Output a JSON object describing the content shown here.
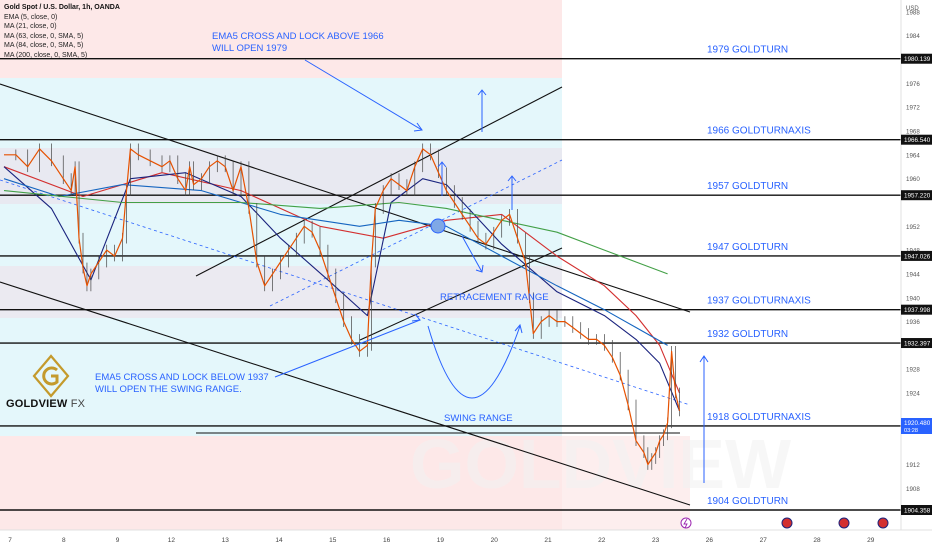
{
  "header": {
    "title": "Gold Spot / U.S. Dollar, 1h, OANDA",
    "indicators": [
      "EMA (5, close, 0)",
      "MA (21, close, 0)",
      "MA (63, close, 0, SMA, 5)",
      "MA (84, close, 0, SMA, 5)",
      "MA (200, close, 0, SMA, 5)"
    ]
  },
  "logo": {
    "brand": "GOLDVIEW",
    "brand_suffix": "FX",
    "watermark": "GOLDVIEW"
  },
  "colors": {
    "goldturn_text": "#2962ff",
    "annotation_text": "#2962ff",
    "arrow": "#2962ff",
    "price_line": "#e65100",
    "ema5": "#e65100",
    "ma21": "#d32f2f",
    "ma63": "#1a237e",
    "ma84": "#1565c0",
    "ma200": "#43a047",
    "pink_zone": "#fde4e4",
    "cyan_zone": "#e2f7fb",
    "level_line": "#111111"
  },
  "chart_data": {
    "type": "line",
    "symbol": "Gold Spot / U.S. Dollar",
    "timeframe": "1h",
    "source": "OANDA",
    "currency": "USD",
    "ylim": [
      1901,
      1990
    ],
    "x_ticks": [
      "7",
      "8",
      "9",
      "12",
      "13",
      "14",
      "15",
      "16",
      "19",
      "20",
      "21",
      "22",
      "23",
      "26",
      "27",
      "28",
      "29"
    ],
    "y_ticks": [
      1988,
      1984,
      1976,
      1972,
      1968,
      1964,
      1960,
      1952,
      1948,
      1944,
      1940,
      1936,
      1928,
      1924,
      1912,
      1908
    ],
    "price_series": {
      "name": "XAUUSD",
      "points": [
        [
          0,
          1964
        ],
        [
          3,
          1964
        ],
        [
          6,
          1962
        ],
        [
          9,
          1965
        ],
        [
          12,
          1963
        ],
        [
          15,
          1960
        ],
        [
          17,
          1958
        ],
        [
          18,
          1962
        ],
        [
          19,
          1950
        ],
        [
          20,
          1945
        ],
        [
          21,
          1942
        ],
        [
          22,
          1944
        ],
        [
          24,
          1946
        ],
        [
          26,
          1948
        ],
        [
          28,
          1947
        ],
        [
          30,
          1950
        ],
        [
          31,
          1958
        ],
        [
          32,
          1965
        ],
        [
          34,
          1964
        ],
        [
          37,
          1963
        ],
        [
          40,
          1962
        ],
        [
          42,
          1963
        ],
        [
          44,
          1960
        ],
        [
          46,
          1958
        ],
        [
          47,
          1962
        ],
        [
          48,
          1959
        ],
        [
          50,
          1960
        ],
        [
          52,
          1962
        ],
        [
          54,
          1963
        ],
        [
          56,
          1962
        ],
        [
          58,
          1958
        ],
        [
          60,
          1962
        ],
        [
          62,
          1955
        ],
        [
          64,
          1946
        ],
        [
          66,
          1942
        ],
        [
          68,
          1944
        ],
        [
          70,
          1946
        ],
        [
          72,
          1948
        ],
        [
          74,
          1950
        ],
        [
          76,
          1952
        ],
        [
          78,
          1951
        ],
        [
          80,
          1948
        ],
        [
          82,
          1944
        ],
        [
          84,
          1940
        ],
        [
          86,
          1936
        ],
        [
          88,
          1933
        ],
        [
          90,
          1931
        ],
        [
          92,
          1932
        ],
        [
          93,
          1946
        ],
        [
          94,
          1955
        ],
        [
          96,
          1958
        ],
        [
          98,
          1960
        ],
        [
          100,
          1959
        ],
        [
          102,
          1958
        ],
        [
          104,
          1962
        ],
        [
          106,
          1965
        ],
        [
          108,
          1964
        ],
        [
          110,
          1961
        ],
        [
          112,
          1958
        ],
        [
          114,
          1956
        ],
        [
          116,
          1954
        ],
        [
          118,
          1952
        ],
        [
          120,
          1950
        ],
        [
          122,
          1949
        ],
        [
          124,
          1951
        ],
        [
          126,
          1953
        ],
        [
          128,
          1954
        ],
        [
          130,
          1950
        ],
        [
          132,
          1946
        ],
        [
          133,
          1940
        ],
        [
          134,
          1934
        ],
        [
          136,
          1936
        ],
        [
          138,
          1937
        ],
        [
          140,
          1936
        ],
        [
          142,
          1936
        ],
        [
          144,
          1935
        ],
        [
          146,
          1934
        ],
        [
          148,
          1933
        ],
        [
          150,
          1933
        ],
        [
          152,
          1932
        ],
        [
          154,
          1930
        ],
        [
          156,
          1927
        ],
        [
          158,
          1922
        ],
        [
          160,
          1916
        ],
        [
          162,
          1914
        ],
        [
          163,
          1912
        ],
        [
          164,
          1913
        ],
        [
          165,
          1914
        ],
        [
          166,
          1916
        ],
        [
          167,
          1917
        ],
        [
          168,
          1919
        ],
        [
          169,
          1931
        ],
        [
          170,
          1924
        ],
        [
          171,
          1921
        ]
      ]
    },
    "moving_averages": [
      {
        "name": "MA (21, close, 0)",
        "points": [
          [
            0,
            1962
          ],
          [
            20,
            1957
          ],
          [
            40,
            1961
          ],
          [
            60,
            1958
          ],
          [
            80,
            1952
          ],
          [
            96,
            1950
          ],
          [
            112,
            1953
          ],
          [
            126,
            1954
          ],
          [
            140,
            1947
          ],
          [
            152,
            1942
          ],
          [
            160,
            1937
          ],
          [
            166,
            1932
          ],
          [
            171,
            1924
          ]
        ]
      },
      {
        "name": "MA (63, close, 0, SMA, 5)",
        "points": [
          [
            0,
            1962
          ],
          [
            12,
            1955
          ],
          [
            22,
            1943
          ],
          [
            32,
            1960
          ],
          [
            46,
            1961
          ],
          [
            60,
            1957
          ],
          [
            70,
            1950
          ],
          [
            82,
            1943
          ],
          [
            92,
            1937
          ],
          [
            98,
            1956
          ],
          [
            106,
            1960
          ],
          [
            112,
            1959
          ],
          [
            126,
            1949
          ],
          [
            140,
            1941
          ],
          [
            152,
            1937
          ],
          [
            160,
            1933
          ],
          [
            166,
            1929
          ],
          [
            171,
            1921
          ]
        ]
      },
      {
        "name": "MA (84, close, 0, SMA, 5)",
        "points": [
          [
            0,
            1960
          ],
          [
            14,
            1957
          ],
          [
            30,
            1959
          ],
          [
            50,
            1958
          ],
          [
            70,
            1954
          ],
          [
            90,
            1952
          ],
          [
            100,
            1953
          ],
          [
            112,
            1952
          ],
          [
            126,
            1947
          ],
          [
            140,
            1942
          ],
          [
            152,
            1938
          ],
          [
            160,
            1935
          ],
          [
            168,
            1932
          ]
        ]
      },
      {
        "name": "MA (200, close, 0, SMA, 5)",
        "points": [
          [
            0,
            1958
          ],
          [
            30,
            1956
          ],
          [
            60,
            1956
          ],
          [
            80,
            1955
          ],
          [
            100,
            1956
          ],
          [
            112,
            1955
          ],
          [
            126,
            1953
          ],
          [
            140,
            1951
          ],
          [
            152,
            1948
          ],
          [
            160,
            1946
          ],
          [
            168,
            1944
          ]
        ]
      }
    ],
    "levels": [
      {
        "price": 1980.139,
        "label": "1979 GOLDTURN",
        "axis_label": "1980.139",
        "axis": ""
      },
      {
        "price": 1966.54,
        "label": "1966 GOLDTURN",
        "axis_label": "1966.540",
        "axis": "AXIS"
      },
      {
        "price": 1957.22,
        "label": "1957 GOLDTURN",
        "axis_label": "1957.220",
        "axis": ""
      },
      {
        "price": 1947.026,
        "label": "1947 GOLDTURN",
        "axis_label": "1947.026",
        "axis": ""
      },
      {
        "price": 1937.998,
        "label": "1937 GOLDTURN",
        "axis_label": "1937.998",
        "axis": "AXIS"
      },
      {
        "price": 1932.397,
        "label": "1932 GOLDTURN",
        "axis_label": "1932.397",
        "axis": ""
      },
      {
        "price": 1918.481,
        "label": "1918 GOLDTURN",
        "axis_label": "1918.481",
        "axis": "AXIS"
      },
      {
        "price": 1904.358,
        "label": "1904 GOLDTURN",
        "axis_label": "1904.358",
        "axis": ""
      }
    ],
    "current_price": {
      "value": "1920.480",
      "countdown": "03:28"
    },
    "annotations": {
      "ema5_above": [
        "EMA5 CROSS AND LOCK ABOVE 1966",
        "WILL OPEN 1979"
      ],
      "ema5_below": [
        "EMA5 CROSS AND LOCK BELOW 1937",
        "WILL OPEN THE SWING RANGE."
      ],
      "retracement": "RETRACEMENT RANGE",
      "swing": "SWING RANGE"
    }
  }
}
